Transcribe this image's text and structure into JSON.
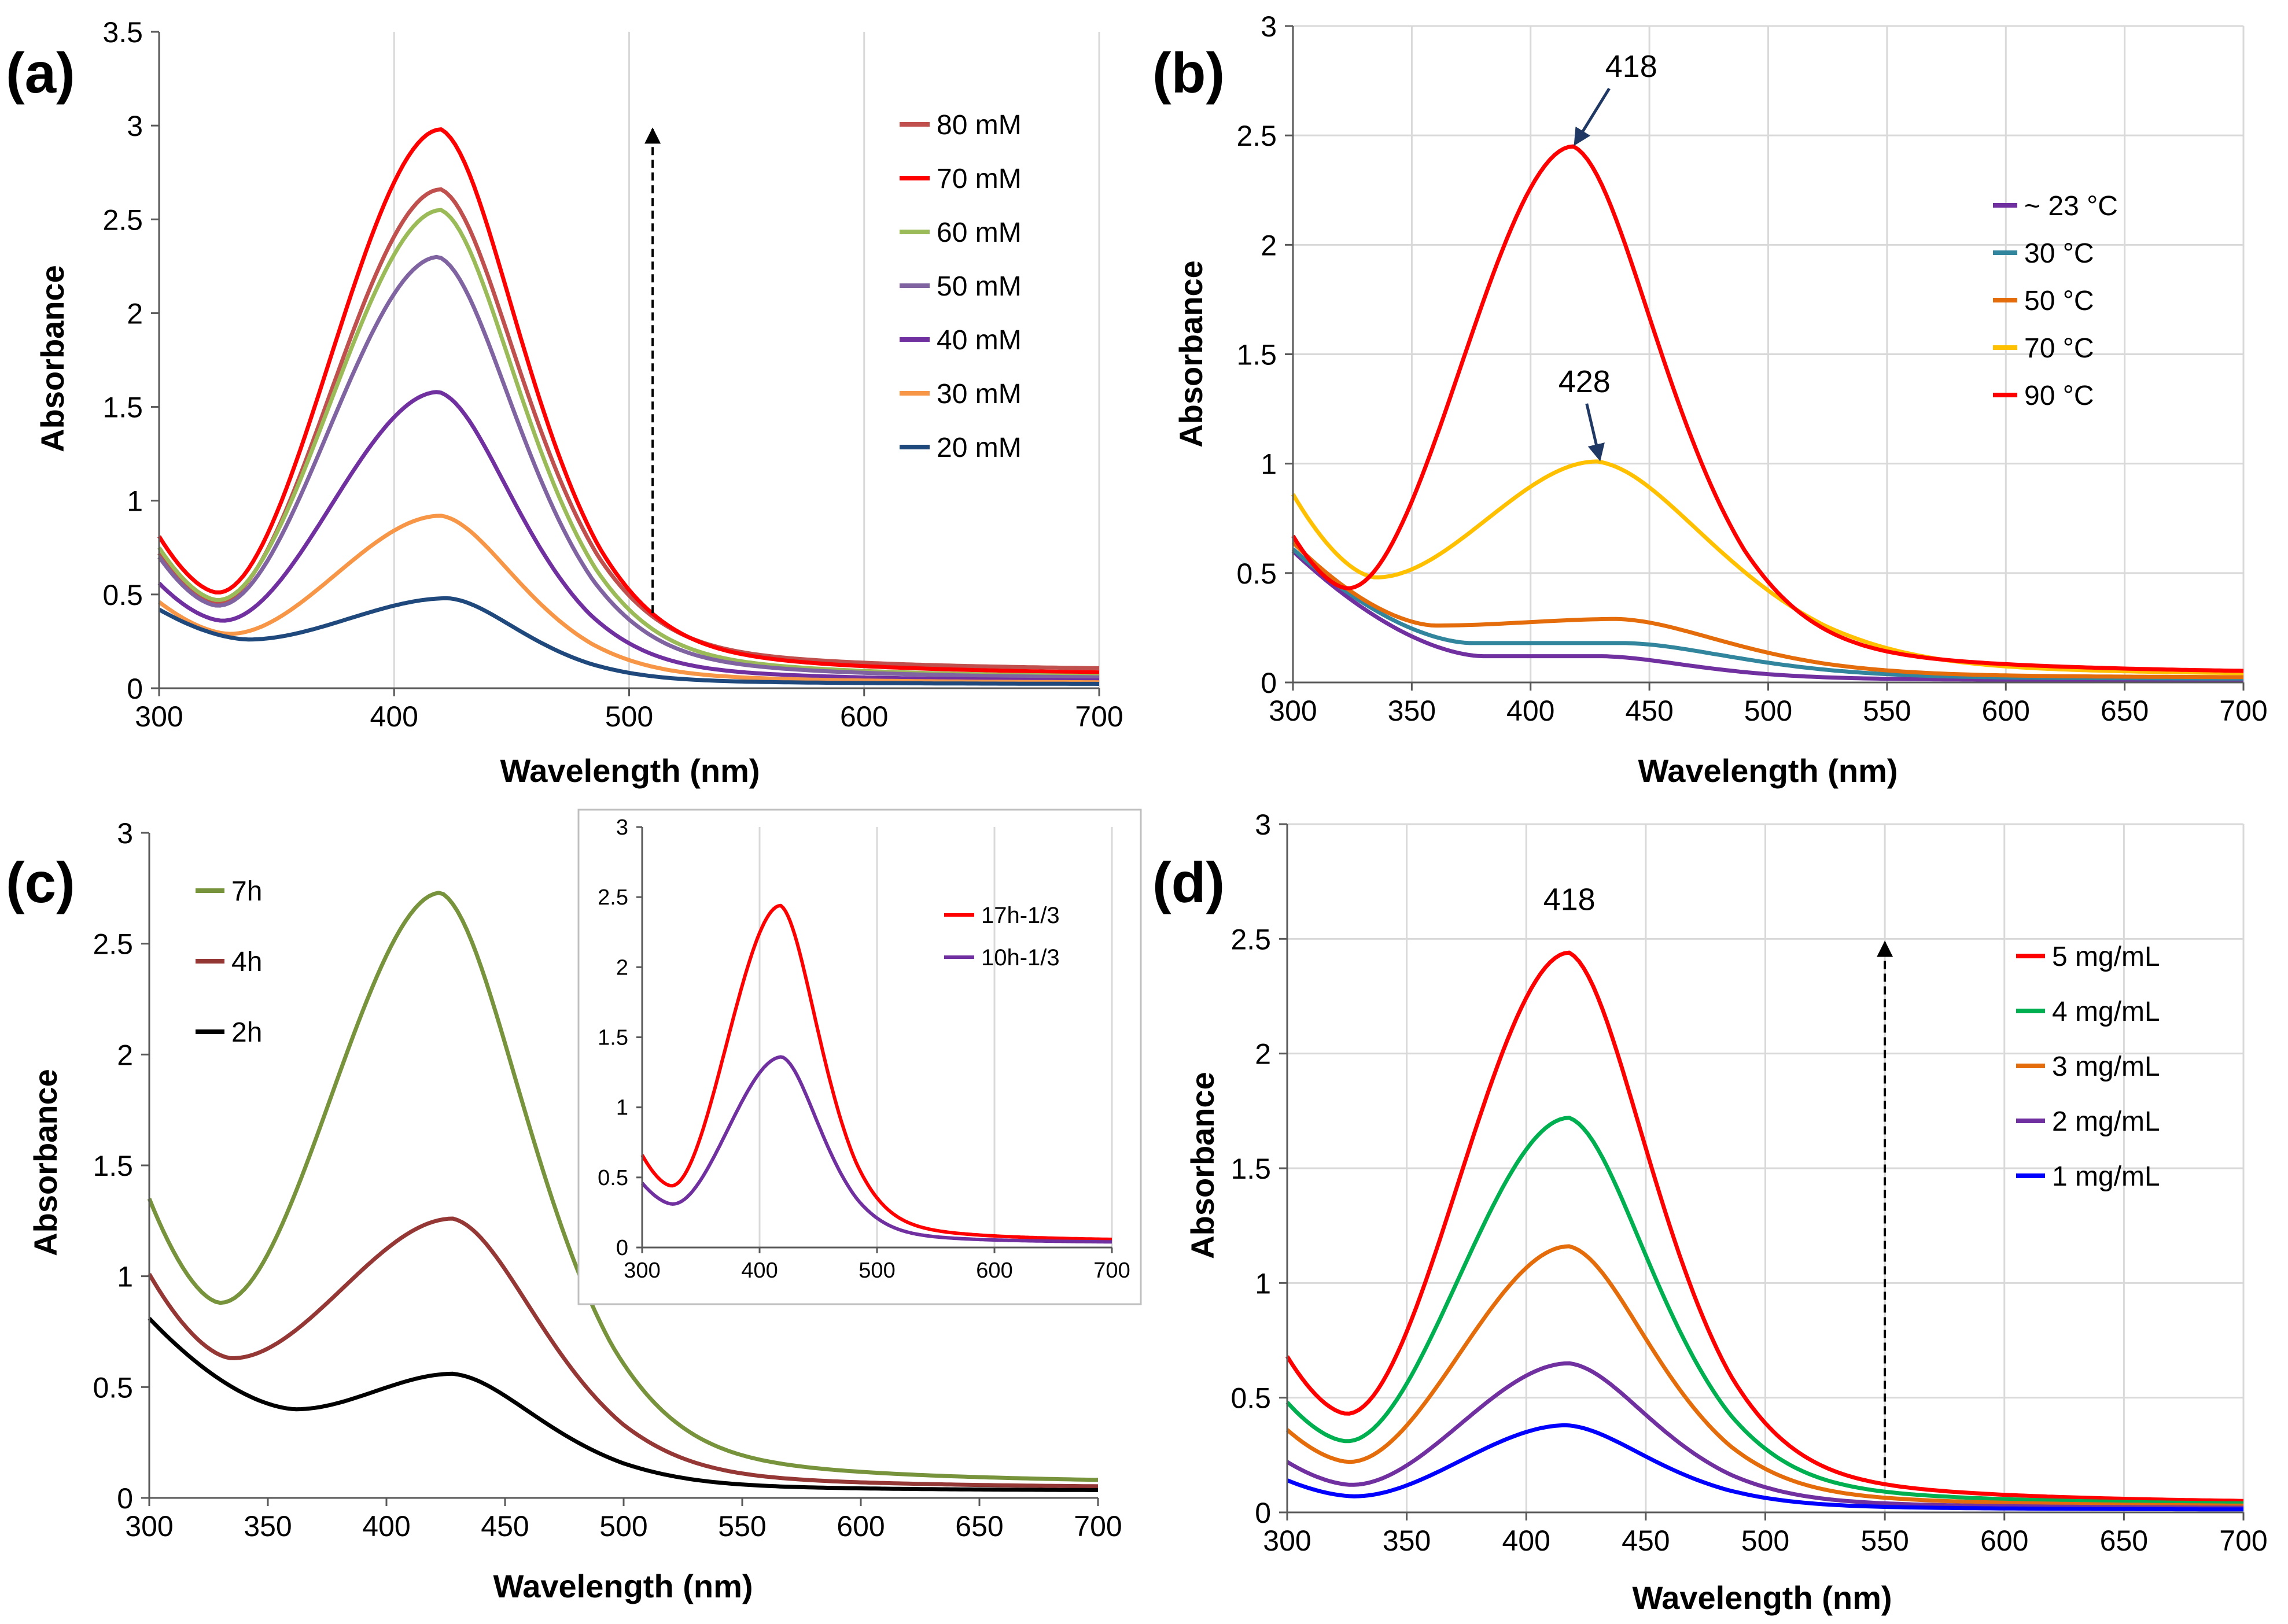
{
  "chart_data": [
    {
      "panel": "(a)",
      "type": "line",
      "xlabel": "Wavelength (nm)",
      "ylabel": "Absorbance",
      "xlim": [
        300,
        700
      ],
      "ylim": [
        0,
        3.5
      ],
      "xticks": [
        "300",
        "400",
        "500",
        "600",
        "700"
      ],
      "yticks": [
        "0",
        "0.5",
        "1",
        "1.5",
        "2",
        "2.5",
        "3",
        "3.5"
      ],
      "grid": "vertical",
      "legend_position": "top-right",
      "arrow": {
        "x": 510,
        "from": 0.4,
        "to": 3.0
      },
      "series": [
        {
          "name": "80 mM",
          "color": "#c0504d",
          "y300": 0.72,
          "minX": 325,
          "minY": 0.46,
          "peakX": 420,
          "peakY": 2.66,
          "width": 42,
          "tail": 0.085
        },
        {
          "name": "70 mM",
          "color": "#ff0000",
          "y300": 0.81,
          "minX": 325,
          "minY": 0.51,
          "peakX": 420,
          "peakY": 2.98,
          "width": 42,
          "tail": 0.06
        },
        {
          "name": "60 mM",
          "color": "#9bbb59",
          "y300": 0.75,
          "minX": 325,
          "minY": 0.47,
          "peakX": 420,
          "peakY": 2.55,
          "width": 41,
          "tail": 0.045
        },
        {
          "name": "50 mM",
          "color": "#8064a2",
          "y300": 0.7,
          "minX": 325,
          "minY": 0.44,
          "peakX": 419,
          "peakY": 2.3,
          "width": 41,
          "tail": 0.04
        },
        {
          "name": "40 mM",
          "color": "#7030a0",
          "y300": 0.56,
          "minX": 327,
          "minY": 0.36,
          "peakX": 419,
          "peakY": 1.58,
          "width": 40,
          "tail": 0.03
        },
        {
          "name": "30 mM",
          "color": "#f79646",
          "y300": 0.46,
          "minX": 330,
          "minY": 0.29,
          "peakX": 420,
          "peakY": 0.92,
          "width": 40,
          "tail": 0.025
        },
        {
          "name": "20 mM",
          "color": "#1f497d",
          "y300": 0.42,
          "minX": 338,
          "minY": 0.26,
          "peakX": 423,
          "peakY": 0.48,
          "width": 38,
          "tail": 0.02
        }
      ]
    },
    {
      "panel": "(b)",
      "type": "line",
      "xlabel": "Wavelength (nm)",
      "ylabel": "Absorbance",
      "xlim": [
        300,
        700
      ],
      "ylim": [
        0,
        3
      ],
      "xticks": [
        "300",
        "350",
        "400",
        "450",
        "500",
        "550",
        "600",
        "650",
        "700"
      ],
      "yticks": [
        "0",
        "0.5",
        "1",
        "1.5",
        "2",
        "2.5",
        "3"
      ],
      "grid": "both",
      "legend_position": "right",
      "annotations": [
        {
          "text": "418",
          "x": 418,
          "y": 2.45
        },
        {
          "text": "428",
          "x": 428,
          "y": 1.01
        }
      ],
      "series": [
        {
          "name": "~ 23 °C",
          "color": "#7030a0",
          "y300": 0.6,
          "minX": 380,
          "minY": 0.12,
          "peakX": 430,
          "peakY": 0.12,
          "width": 45,
          "tail": 0.01
        },
        {
          "name": "30 °C",
          "color": "#31859c",
          "y300": 0.61,
          "minX": 375,
          "minY": 0.18,
          "peakX": 440,
          "peakY": 0.18,
          "width": 55,
          "tail": 0.015
        },
        {
          "name": "50 °C",
          "color": "#e46c0a",
          "y300": 0.64,
          "minX": 360,
          "minY": 0.26,
          "peakX": 437,
          "peakY": 0.29,
          "width": 55,
          "tail": 0.02
        },
        {
          "name": "70 °C",
          "color": "#ffc000",
          "y300": 0.86,
          "minX": 335,
          "minY": 0.48,
          "peakX": 428,
          "peakY": 1.01,
          "width": 60,
          "tail": 0.025
        },
        {
          "name": "90 °C",
          "color": "#ff0000",
          "y300": 0.67,
          "minX": 323,
          "minY": 0.43,
          "peakX": 418,
          "peakY": 2.45,
          "width": 45,
          "tail": 0.03
        }
      ]
    },
    {
      "panel": "(c)",
      "type": "line",
      "xlabel": "Wavelength (nm)",
      "ylabel": "Absorbance",
      "xlim": [
        300,
        700
      ],
      "ylim": [
        0,
        3
      ],
      "xticks": [
        "300",
        "350",
        "400",
        "450",
        "500",
        "550",
        "600",
        "650",
        "700"
      ],
      "yticks": [
        "0",
        "0.5",
        "1",
        "1.5",
        "2",
        "2.5",
        "3"
      ],
      "grid": "none",
      "legend_position": "top-left",
      "series": [
        {
          "name": "7h",
          "color": "#77933c",
          "y300": 1.35,
          "minX": 330,
          "minY": 0.88,
          "peakX": 423,
          "peakY": 2.73,
          "width": 45,
          "tail": 0.055
        },
        {
          "name": "4h",
          "color": "#953735",
          "y300": 1.01,
          "minX": 335,
          "minY": 0.63,
          "peakX": 428,
          "peakY": 1.26,
          "width": 45,
          "tail": 0.04
        },
        {
          "name": "2h",
          "color": "#000000",
          "y300": 0.81,
          "minX": 362,
          "minY": 0.4,
          "peakX": 428,
          "peakY": 0.56,
          "width": 45,
          "tail": 0.03
        }
      ],
      "inset": {
        "type": "line",
        "xlim": [
          300,
          700
        ],
        "ylim": [
          0,
          3
        ],
        "xticks": [
          "300",
          "400",
          "500",
          "600",
          "700"
        ],
        "yticks": [
          "0",
          "0.5",
          "1",
          "1.5",
          "2",
          "2.5",
          "3"
        ],
        "grid": "vertical",
        "legend_position": "top-right",
        "series": [
          {
            "name": "17h-1/3",
            "color": "#ff0000",
            "y300": 0.66,
            "minX": 325,
            "minY": 0.44,
            "peakX": 418,
            "peakY": 2.44,
            "width": 40,
            "tail": 0.04
          },
          {
            "name": "10h-1/3",
            "color": "#7030a0",
            "y300": 0.46,
            "minX": 326,
            "minY": 0.31,
            "peakX": 419,
            "peakY": 1.36,
            "width": 40,
            "tail": 0.03
          }
        ]
      }
    },
    {
      "panel": "(d)",
      "type": "line",
      "xlabel": "Wavelength (nm)",
      "ylabel": "Absorbance",
      "xlim": [
        300,
        700
      ],
      "ylim": [
        0,
        3
      ],
      "xticks": [
        "300",
        "350",
        "400",
        "450",
        "500",
        "550",
        "600",
        "650",
        "700"
      ],
      "yticks": [
        "0",
        "0.5",
        "1",
        "1.5",
        "2",
        "2.5",
        "3"
      ],
      "grid": "both",
      "legend_position": "right",
      "annotations": [
        {
          "text": "418",
          "x": 418,
          "y": 2.6
        }
      ],
      "arrow": {
        "x": 550,
        "from": 0.15,
        "to": 2.5
      },
      "series": [
        {
          "name": "5 mg/mL",
          "color": "#ff0000",
          "y300": 0.68,
          "minX": 325,
          "minY": 0.43,
          "peakX": 418,
          "peakY": 2.44,
          "width": 42,
          "tail": 0.03
        },
        {
          "name": "4 mg/mL",
          "color": "#00b050",
          "y300": 0.48,
          "minX": 325,
          "minY": 0.31,
          "peakX": 418,
          "peakY": 1.72,
          "width": 42,
          "tail": 0.025
        },
        {
          "name": "3 mg/mL",
          "color": "#e46c0a",
          "y300": 0.36,
          "minX": 326,
          "minY": 0.22,
          "peakX": 418,
          "peakY": 1.16,
          "width": 42,
          "tail": 0.02
        },
        {
          "name": "2 mg/mL",
          "color": "#7030a0",
          "y300": 0.22,
          "minX": 327,
          "minY": 0.12,
          "peakX": 418,
          "peakY": 0.65,
          "width": 42,
          "tail": 0.015
        },
        {
          "name": "1 mg/mL",
          "color": "#0000ff",
          "y300": 0.14,
          "minX": 328,
          "minY": 0.07,
          "peakX": 417,
          "peakY": 0.38,
          "width": 42,
          "tail": 0.01
        }
      ]
    }
  ]
}
